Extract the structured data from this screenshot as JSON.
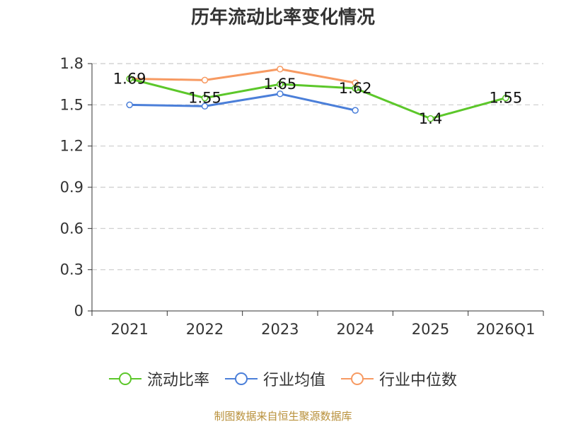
{
  "chart_data": {
    "type": "line",
    "title": "历年流动比率变化情况",
    "categories": [
      "2021",
      "2022",
      "2023",
      "2024",
      "2025",
      "2026Q1"
    ],
    "ylim": [
      0,
      1.8
    ],
    "yticks": [
      "0",
      "0.3",
      "0.6",
      "0.9",
      "1.2",
      "1.5",
      "1.8"
    ],
    "ytick_values": [
      0,
      0.3,
      0.6,
      0.9,
      1.2,
      1.5,
      1.8
    ],
    "grid": true,
    "legend_position": "bottom",
    "series": [
      {
        "name": "流动比率",
        "color": "#5cc72a",
        "values": [
          1.69,
          1.55,
          1.65,
          1.62,
          1.4,
          1.55
        ],
        "labels": [
          "1.69",
          "1.55",
          "1.65",
          "1.62",
          "1.4",
          "1.55"
        ]
      },
      {
        "name": "行业均值",
        "color": "#4b7fd9",
        "values": [
          1.5,
          1.49,
          1.58,
          1.46,
          null,
          null
        ]
      },
      {
        "name": "行业中位数",
        "color": "#f79a62",
        "values": [
          1.69,
          1.68,
          1.76,
          1.66,
          null,
          null
        ]
      }
    ]
  },
  "footer": {
    "source": "制图数据来自恒生聚源数据库"
  }
}
